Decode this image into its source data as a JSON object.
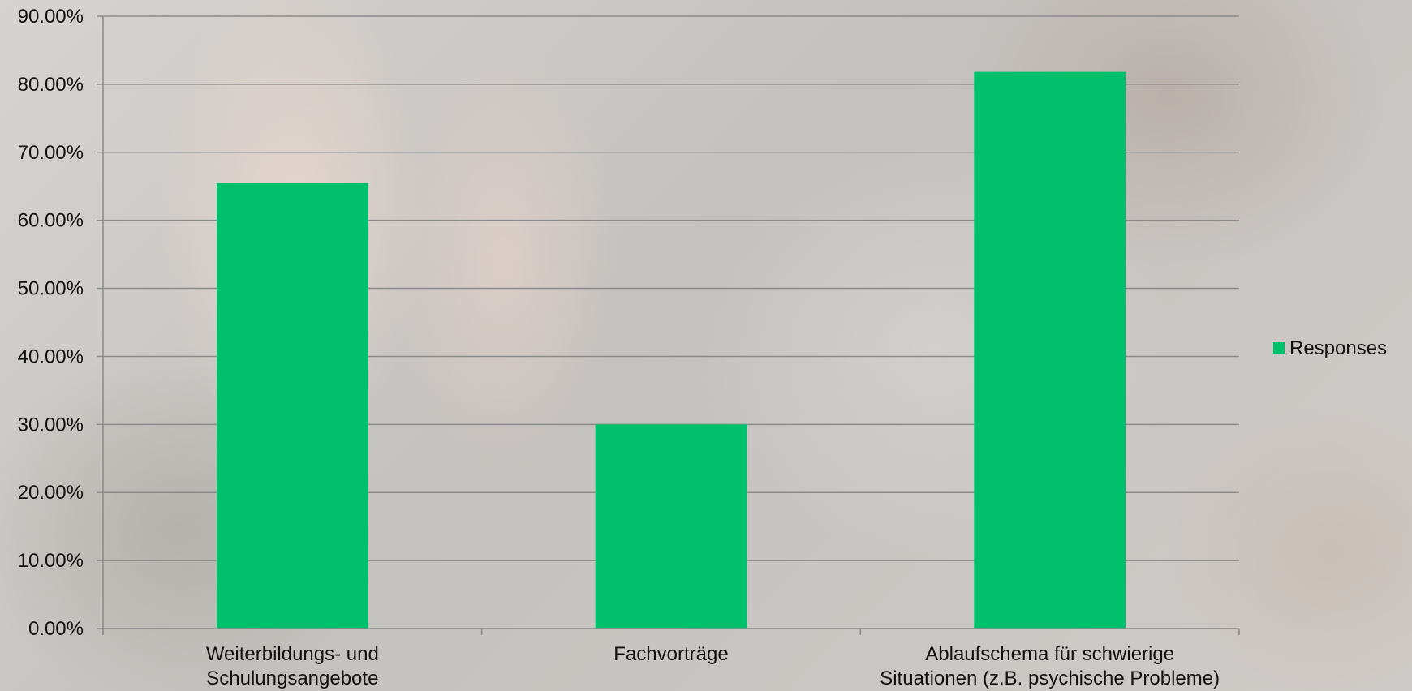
{
  "chart_data": {
    "type": "bar",
    "categories": [
      [
        "Weiterbildungs- und",
        "Schulungsangebote"
      ],
      [
        "Fachvorträge"
      ],
      [
        "Ablaufschema für schwierige",
        "Situationen (z.B. psychische Probleme)"
      ]
    ],
    "series": [
      {
        "name": "Responses",
        "values": [
          65.45,
          30.0,
          81.82
        ],
        "color": "#00c06b"
      }
    ],
    "y_ticks": [
      "0.00%",
      "10.00%",
      "20.00%",
      "30.00%",
      "40.00%",
      "50.00%",
      "60.00%",
      "70.00%",
      "80.00%",
      "90.00%"
    ],
    "ylim": [
      0,
      90
    ],
    "y_unit": "percent",
    "grid": true,
    "gridline_color": "#8a8a8a",
    "legend_position": "right",
    "title": "",
    "xlabel": "",
    "ylabel": ""
  }
}
